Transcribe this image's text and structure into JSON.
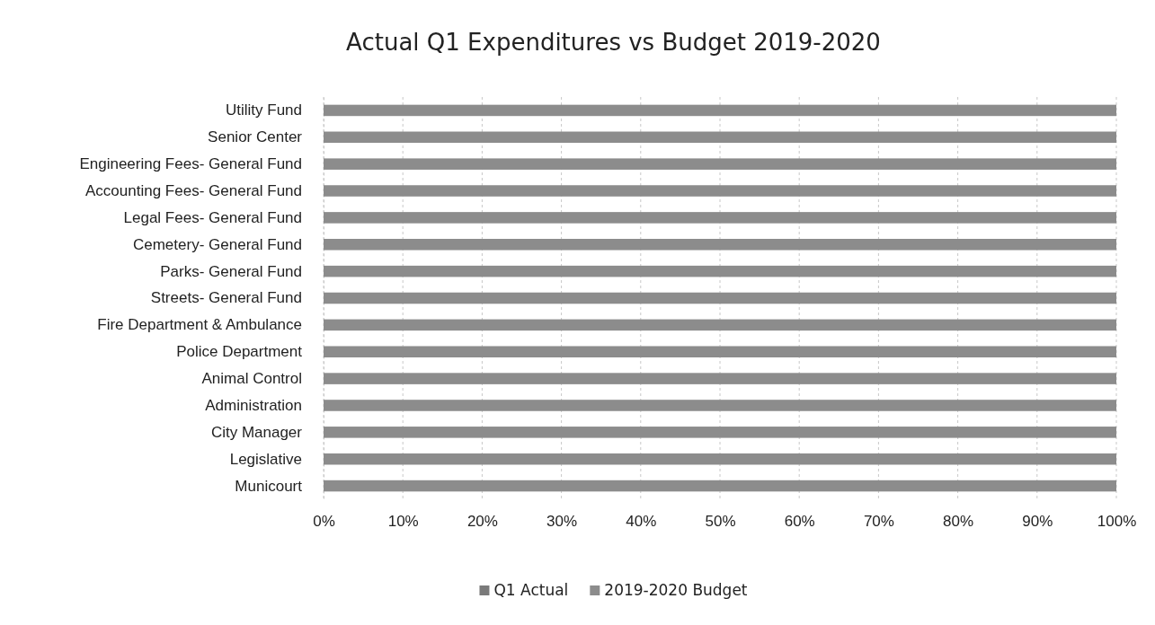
{
  "chart_data": {
    "type": "bar",
    "title": "Actual Q1 Expenditures vs Budget 2019-2020",
    "orientation": "horizontal",
    "categories": [
      "Utility Fund",
      "Senior Center",
      "Engineering Fees- General Fund",
      "Accounting Fees- General Fund",
      "Legal Fees- General Fund",
      "Cemetery- General Fund",
      "Parks- General Fund",
      "Streets- General Fund",
      "Fire Department & Ambulance",
      "Police Department",
      "Animal Control",
      "Administration",
      "City Manager",
      "Legislative",
      "Municourt"
    ],
    "series": [
      {
        "name": "Q1 Actual",
        "color": "#7a7a7a",
        "values": [
          null,
          null,
          null,
          null,
          null,
          null,
          null,
          null,
          null,
          null,
          null,
          null,
          null,
          null,
          null
        ]
      },
      {
        "name": "2019-2020 Budget",
        "color": "#8c8c8c",
        "values": [
          100,
          100,
          100,
          100,
          100,
          100,
          100,
          100,
          100,
          100,
          100,
          100,
          100,
          100,
          100
        ]
      }
    ],
    "xlim": [
      0,
      100
    ],
    "xticks": [
      {
        "value": 0,
        "label": "0%"
      },
      {
        "value": 10,
        "label": "10%"
      },
      {
        "value": 20,
        "label": "20%"
      },
      {
        "value": 30,
        "label": "30%"
      },
      {
        "value": 40,
        "label": "40%"
      },
      {
        "value": 50,
        "label": "50%"
      },
      {
        "value": 60,
        "label": "60%"
      },
      {
        "value": 70,
        "label": "70%"
      },
      {
        "value": 80,
        "label": "80%"
      },
      {
        "value": 90,
        "label": "90%"
      },
      {
        "value": 100,
        "label": "100%"
      }
    ],
    "grid": "x",
    "legend": "bottom"
  }
}
